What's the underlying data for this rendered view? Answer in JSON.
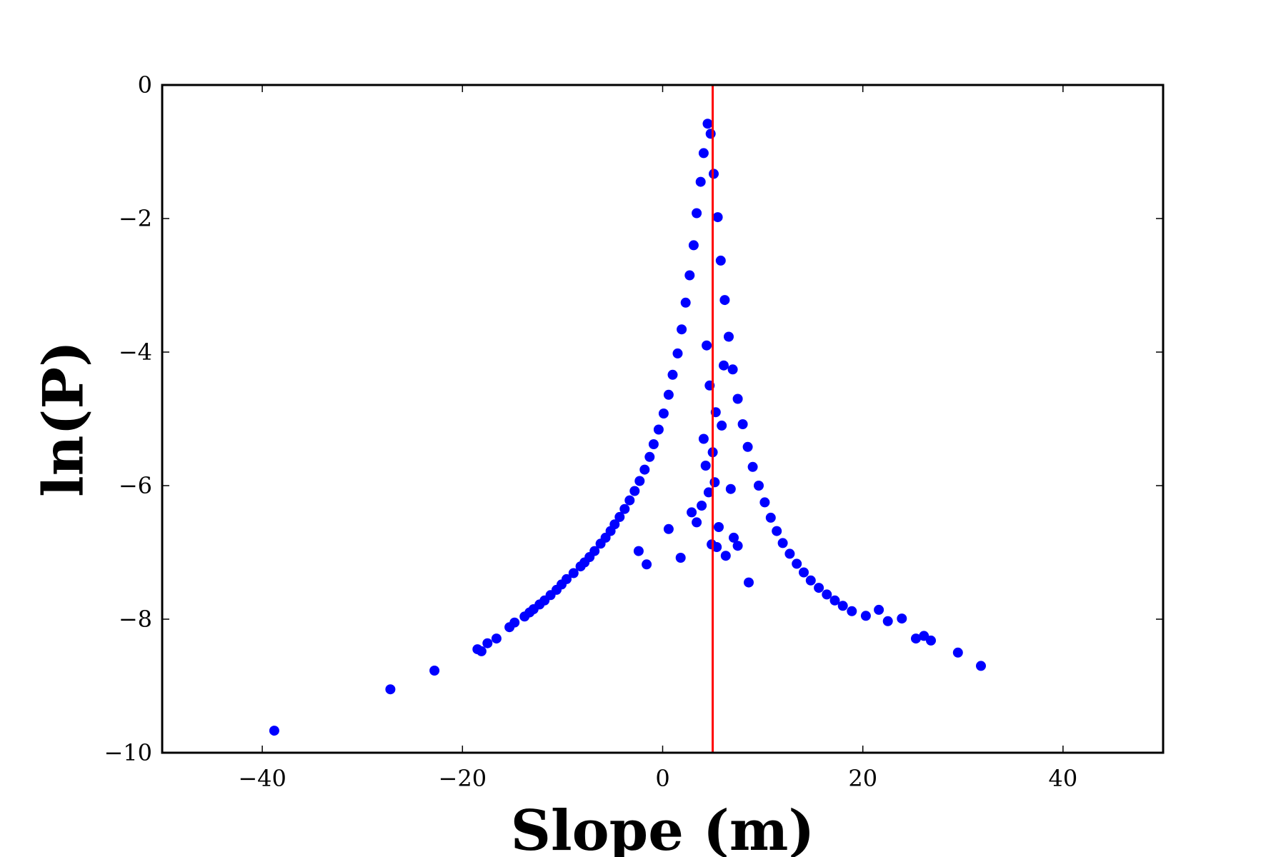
{
  "chart_data": {
    "type": "scatter",
    "title": "",
    "xlabel": "Slope (m)",
    "ylabel": "ln(P)",
    "xlim": [
      -50,
      50
    ],
    "ylim": [
      -10,
      0
    ],
    "x_ticks": [
      -40,
      -20,
      0,
      20,
      40
    ],
    "x_tick_labels": [
      "−40",
      "−20",
      "0",
      "20",
      "40"
    ],
    "y_ticks": [
      0,
      -2,
      -4,
      -6,
      -8,
      -10
    ],
    "y_tick_labels": [
      "0",
      "−2",
      "−4",
      "−6",
      "−8",
      "−10"
    ],
    "grid": false,
    "legend": "none",
    "reference_line": {
      "orientation": "vertical",
      "x": 5.0,
      "color": "#ff0000"
    },
    "series": [
      {
        "color": "#0000ff",
        "x": [
          -38.8,
          -27.2,
          -22.8,
          -18.5,
          -18.1,
          -17.5,
          -16.6,
          -15.3,
          -14.8,
          -13.8,
          -13.3,
          -12.9,
          -12.3,
          -11.8,
          -11.2,
          -10.6,
          -10.1,
          -9.6,
          -8.9,
          -8.2,
          -7.8,
          -7.3,
          -6.8,
          -6.2,
          -5.7,
          -5.2,
          -4.8,
          -4.3,
          -3.8,
          -3.3,
          -2.8,
          -2.3,
          -1.8,
          -1.3,
          -0.9,
          -0.4,
          0.1,
          0.6,
          1.0,
          1.5,
          1.9,
          2.3,
          2.7,
          3.1,
          3.4,
          3.8,
          4.1,
          4.5,
          4.8,
          5.1,
          5.5,
          5.8,
          6.2,
          6.6,
          7.0,
          7.5,
          8.0,
          8.5,
          9.0,
          9.6,
          10.2,
          10.8,
          11.4,
          12.0,
          12.7,
          13.4,
          14.1,
          14.8,
          15.6,
          16.4,
          17.2,
          18.0,
          18.9,
          20.3,
          21.6,
          22.5,
          23.9,
          25.3,
          26.1,
          26.8,
          29.5,
          31.8,
          -1.6,
          1.8,
          -2.4,
          0.6,
          3.4,
          4.9,
          5.4,
          6.3,
          7.1,
          8.6,
          3.9,
          4.6,
          5.2,
          4.3,
          5.0,
          5.6,
          4.1,
          6.8,
          2.9,
          7.5,
          5.3,
          4.7,
          5.9,
          6.1,
          4.4
        ],
        "y": [
          -9.67,
          -9.05,
          -8.77,
          -8.45,
          -8.48,
          -8.36,
          -8.29,
          -8.12,
          -8.05,
          -7.96,
          -7.9,
          -7.85,
          -7.78,
          -7.72,
          -7.64,
          -7.56,
          -7.48,
          -7.4,
          -7.31,
          -7.21,
          -7.15,
          -7.07,
          -6.98,
          -6.87,
          -6.78,
          -6.68,
          -6.58,
          -6.47,
          -6.35,
          -6.22,
          -6.08,
          -5.93,
          -5.76,
          -5.57,
          -5.38,
          -5.16,
          -4.92,
          -4.64,
          -4.34,
          -4.02,
          -3.66,
          -3.26,
          -2.85,
          -2.4,
          -1.92,
          -1.45,
          -1.02,
          -0.58,
          -0.73,
          -1.33,
          -1.98,
          -2.63,
          -3.22,
          -3.77,
          -4.26,
          -4.7,
          -5.08,
          -5.42,
          -5.72,
          -6.0,
          -6.25,
          -6.48,
          -6.68,
          -6.86,
          -7.02,
          -7.17,
          -7.3,
          -7.42,
          -7.53,
          -7.63,
          -7.72,
          -7.8,
          -7.88,
          -7.95,
          -7.86,
          -8.03,
          -7.99,
          -8.29,
          -8.25,
          -8.32,
          -8.5,
          -8.7,
          -7.18,
          -7.08,
          -6.98,
          -6.65,
          -6.55,
          -6.88,
          -6.92,
          -7.05,
          -6.78,
          -7.45,
          -6.3,
          -6.1,
          -5.95,
          -5.7,
          -5.5,
          -6.62,
          -5.3,
          -6.05,
          -6.4,
          -6.9,
          -4.9,
          -4.5,
          -5.1,
          -4.2,
          -3.9
        ]
      }
    ]
  }
}
